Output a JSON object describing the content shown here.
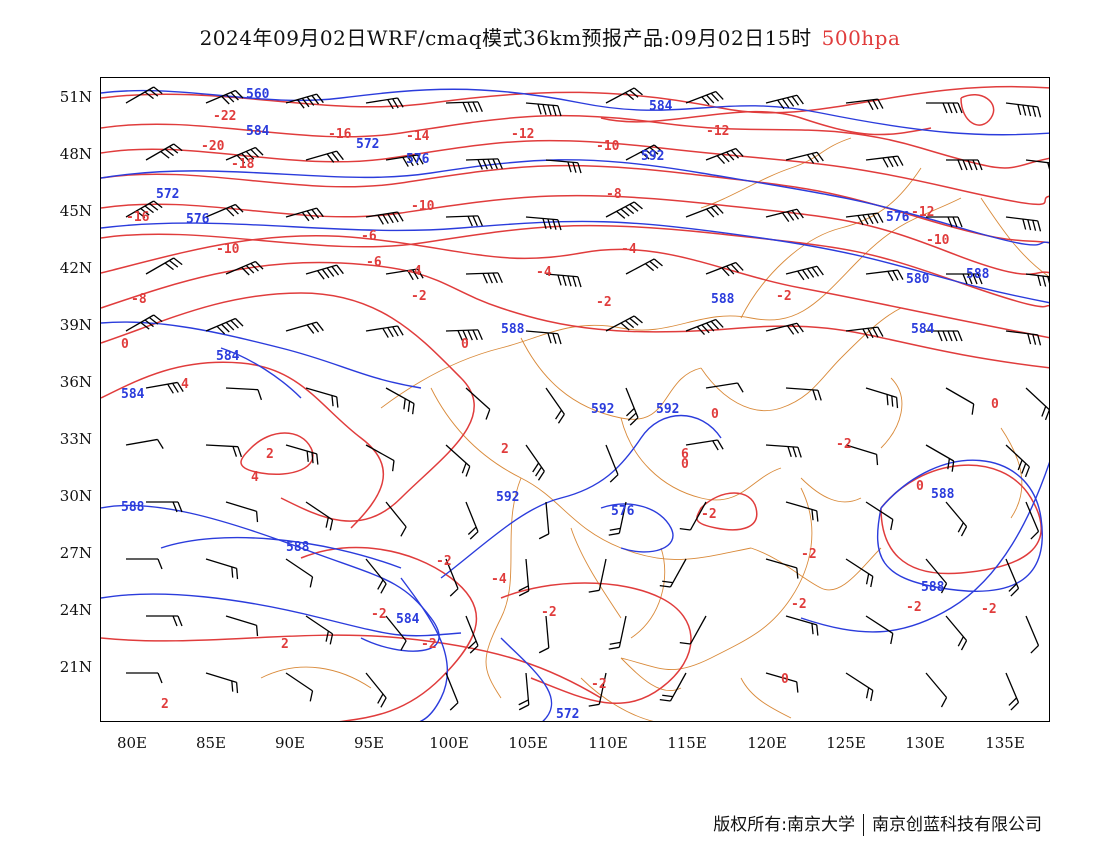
{
  "title": {
    "main": "2024年09月02日WRF/cmaq模式36km预报产品:09月02日15时",
    "level": "500hpa"
  },
  "colors": {
    "height": "#2b3cdc",
    "temperature": "#e03c3c",
    "border": "#d98a3a",
    "wind": "#000000"
  },
  "axes": {
    "lat_labels": [
      "51N",
      "48N",
      "45N",
      "42N",
      "39N",
      "36N",
      "33N",
      "30N",
      "27N",
      "24N",
      "21N"
    ],
    "lon_labels": [
      "80E",
      "85E",
      "90E",
      "95E",
      "100E",
      "105E",
      "110E",
      "115E",
      "120E",
      "125E",
      "130E",
      "135E"
    ]
  },
  "height_labels": [
    "560",
    "584",
    "572",
    "576",
    "572",
    "576",
    "584",
    "588",
    "584",
    "584",
    "592",
    "592",
    "592",
    "588",
    "588",
    "584",
    "588",
    "588",
    "576",
    "572",
    "588",
    "584",
    "580",
    "576",
    "588",
    "592"
  ],
  "temp_labels": [
    "-22",
    "-20",
    "-18",
    "-16",
    "-16",
    "-14",
    "-12",
    "-12",
    "-10",
    "-10",
    "-10",
    "-8",
    "-8",
    "-6",
    "-6",
    "-4",
    "-4",
    "-4",
    "-2",
    "-2",
    "-2",
    "0",
    "0",
    "2",
    "2",
    "4",
    "4",
    "6",
    "-12",
    "-10",
    "-4",
    "-2",
    "-2",
    "-2",
    "-2",
    "-2",
    "-2",
    "0",
    "0",
    "0",
    "2",
    "-2",
    "-2",
    "0",
    "-2",
    "-2",
    "0",
    "2",
    "-2"
  ],
  "footer": {
    "left": "版权所有:南京大学",
    "right": "南京创蓝科技有限公司"
  }
}
